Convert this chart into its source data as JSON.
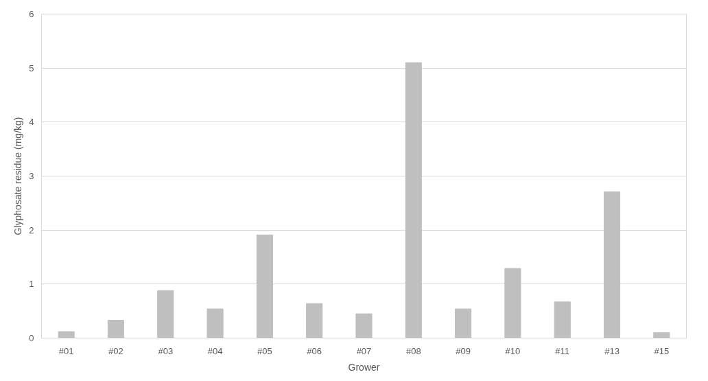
{
  "chart_data": {
    "type": "bar",
    "xlabel": "Grower",
    "ylabel": "Glyphosate residue (mg/kg)",
    "categories": [
      "#01",
      "#02",
      "#03",
      "#04",
      "#05",
      "#06",
      "#07",
      "#08",
      "#09",
      "#10",
      "#11",
      "#13",
      "#15"
    ],
    "values": [
      0.12,
      0.33,
      0.88,
      0.54,
      1.91,
      0.64,
      0.45,
      5.1,
      0.54,
      1.29,
      0.67,
      2.71,
      0.1
    ],
    "color": "#bfbfbf",
    "ylim": [
      0,
      6
    ],
    "yticks": [
      0,
      1,
      2,
      3,
      4,
      5,
      6
    ],
    "grid": "y"
  }
}
